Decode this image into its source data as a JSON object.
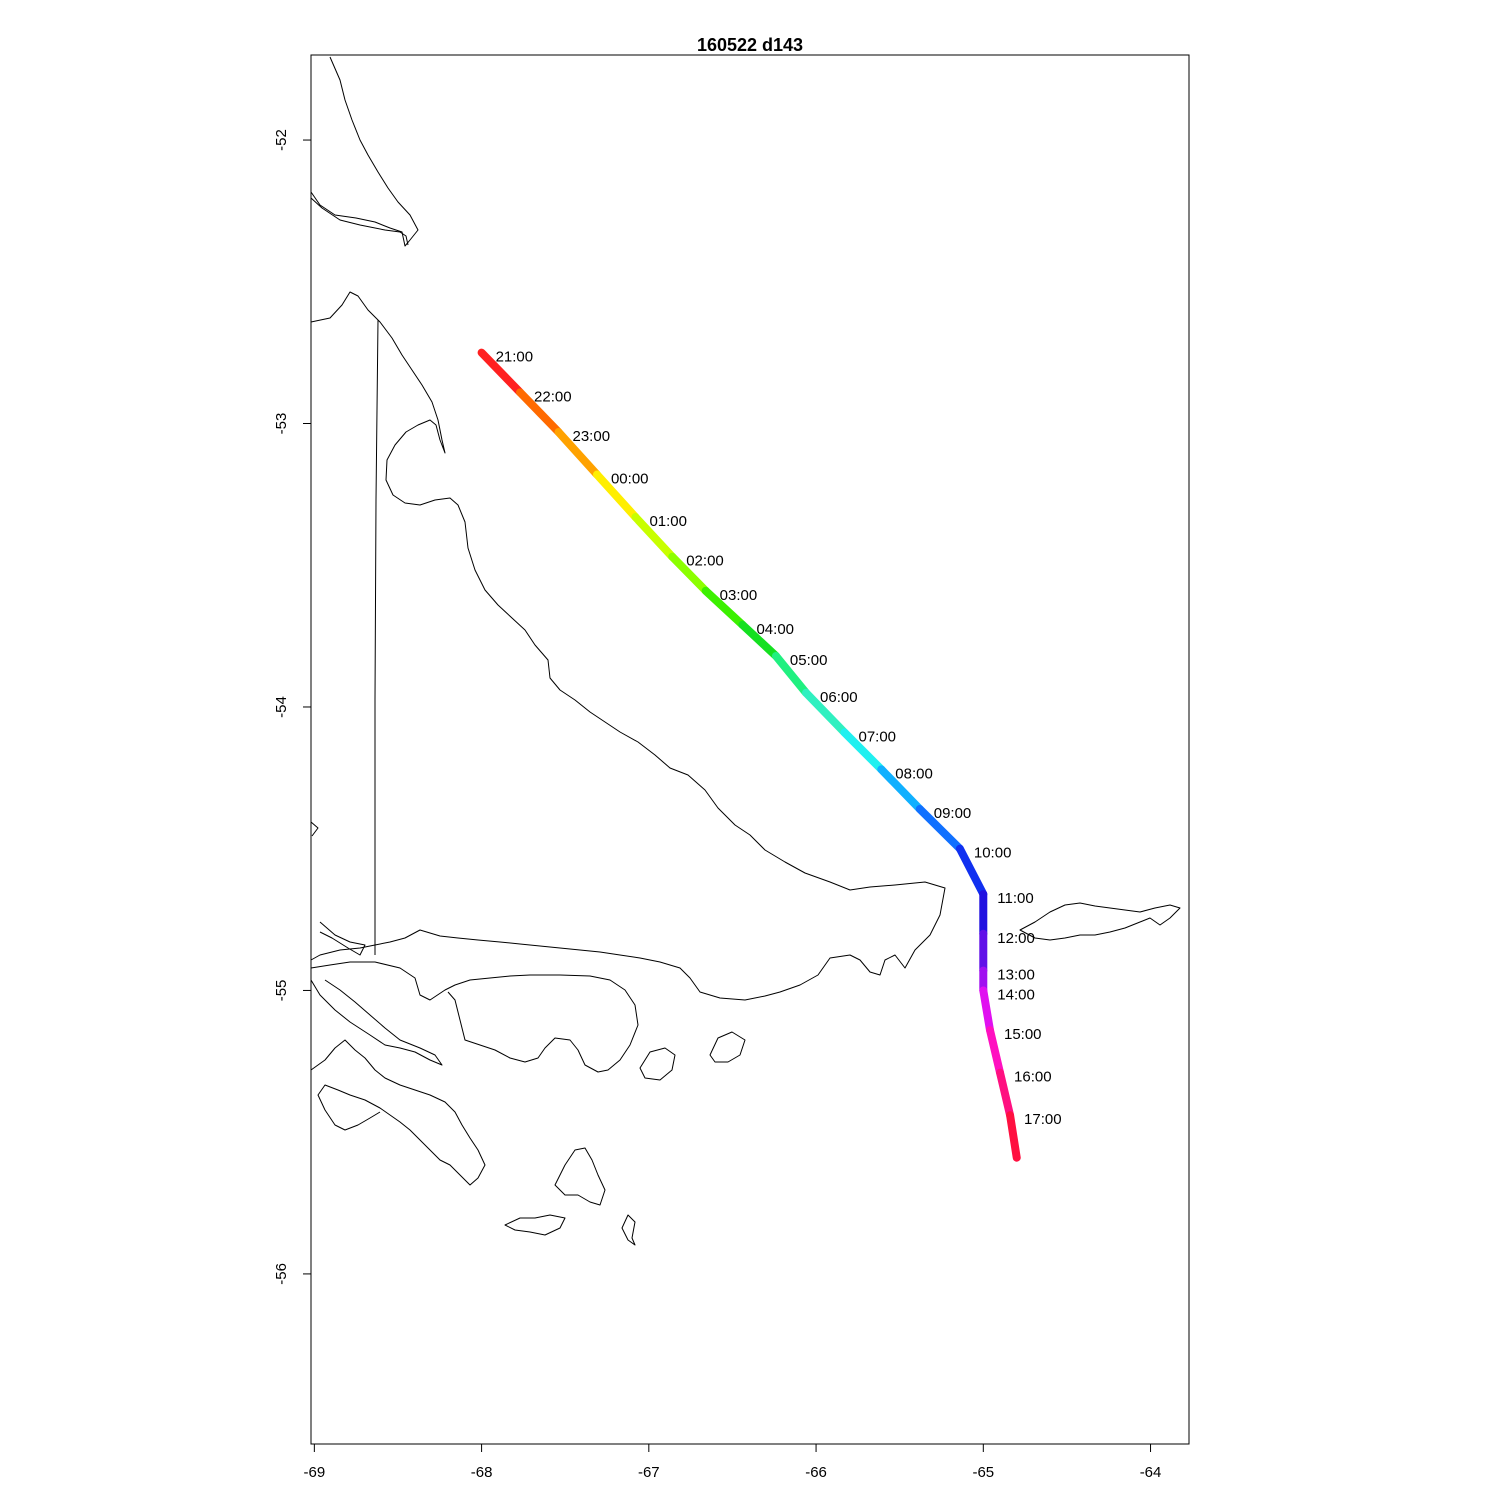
{
  "map": {
    "title": "160522   d143",
    "projection": "lon-lat",
    "lon_range": [
      -69.02,
      -63.77
    ],
    "lat_range": [
      -56.6,
      -51.7
    ],
    "x_ticks": [
      {
        "value": -69,
        "label": "-69"
      },
      {
        "value": -68,
        "label": "-68"
      },
      {
        "value": -67,
        "label": "-67"
      },
      {
        "value": -66,
        "label": "-66"
      },
      {
        "value": -65,
        "label": "-65"
      },
      {
        "value": -64,
        "label": "-64"
      }
    ],
    "y_ticks": [
      {
        "value": -52,
        "label": "-52"
      },
      {
        "value": -53,
        "label": "-53"
      },
      {
        "value": -54,
        "label": "-54"
      },
      {
        "value": -55,
        "label": "-55"
      },
      {
        "value": -56,
        "label": "-56"
      }
    ],
    "coastline_color": "#000000",
    "track": [
      {
        "time": "21:00",
        "lon": -68.0,
        "lat": -52.75,
        "color": "#ff2020"
      },
      {
        "time": "22:00",
        "lon": -67.77,
        "lat": -52.89,
        "color": "#ff6a00"
      },
      {
        "time": "23:00",
        "lon": -67.54,
        "lat": -53.03,
        "color": "#ffa200"
      },
      {
        "time": "00:00",
        "lon": -67.31,
        "lat": -53.18,
        "color": "#ffee00"
      },
      {
        "time": "01:00",
        "lon": -67.08,
        "lat": -53.33,
        "color": "#c8ff00"
      },
      {
        "time": "02:00",
        "lon": -66.86,
        "lat": -53.47,
        "color": "#8cff00"
      },
      {
        "time": "03:00",
        "lon": -66.66,
        "lat": -53.59,
        "color": "#3cf000"
      },
      {
        "time": "04:00",
        "lon": -66.44,
        "lat": -53.71,
        "color": "#14e020"
      },
      {
        "time": "05:00",
        "lon": -66.24,
        "lat": -53.82,
        "color": "#20f080"
      },
      {
        "time": "06:00",
        "lon": -66.06,
        "lat": -53.95,
        "color": "#30f0c0"
      },
      {
        "time": "07:00",
        "lon": -65.83,
        "lat": -54.09,
        "color": "#20f0f0"
      },
      {
        "time": "08:00",
        "lon": -65.61,
        "lat": -54.22,
        "color": "#10b0ff"
      },
      {
        "time": "09:00",
        "lon": -65.38,
        "lat": -54.36,
        "color": "#1070ff"
      },
      {
        "time": "10:00",
        "lon": -65.14,
        "lat": -54.5,
        "color": "#1030f0"
      },
      {
        "time": "11:00",
        "lon": -65.0,
        "lat": -54.66,
        "color": "#2010e0"
      },
      {
        "time": "12:00",
        "lon": -65.0,
        "lat": -54.8,
        "color": "#6010e8"
      },
      {
        "time": "13:00",
        "lon": -65.0,
        "lat": -54.93,
        "color": "#a010f0"
      },
      {
        "time": "14:00",
        "lon": -65.0,
        "lat": -55.0,
        "color": "#e010f0"
      },
      {
        "time": "15:00",
        "lon": -64.96,
        "lat": -55.14,
        "color": "#ff10c0"
      },
      {
        "time": "16:00",
        "lon": -64.9,
        "lat": -55.29,
        "color": "#ff1080"
      },
      {
        "time": "17:00",
        "lon": -64.84,
        "lat": -55.44,
        "color": "#ff1040"
      }
    ],
    "track_end": {
      "lon": -64.8,
      "lat": -55.59,
      "color": "#ff1030"
    }
  }
}
